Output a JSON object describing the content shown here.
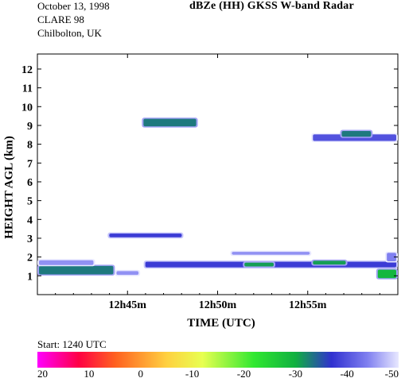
{
  "header": {
    "date": "October 13, 1998",
    "campaign": "CLARE 98",
    "site": "Chilbolton, UK",
    "title": "dBZe (HH)   GKSS  W-band Radar"
  },
  "start_label": "Start:  1240 UTC",
  "chart_data": {
    "type": "heatmap",
    "title": "dBZe (HH)   GKSS  W-band Radar",
    "xlabel": "TIME (UTC)",
    "ylabel": "HEIGHT AGL (km)",
    "x_ticks": [
      "12h45m",
      "12h50m",
      "12h55m"
    ],
    "x_tick_minutes": [
      45,
      50,
      55
    ],
    "xlim_minutes": [
      40,
      60
    ],
    "ylim_km": [
      0,
      12.8
    ],
    "y_ticks": [
      1,
      2,
      3,
      4,
      5,
      6,
      7,
      8,
      9,
      10,
      11,
      12
    ],
    "colorbar": {
      "ticks": [
        20,
        10,
        0,
        -10,
        -20,
        -30,
        -40,
        -50
      ],
      "range_dbz": [
        20,
        -50
      ],
      "stops": [
        {
          "dbz": 20,
          "color": "#ff00ff"
        },
        {
          "dbz": 12,
          "color": "#ff0044"
        },
        {
          "dbz": 5,
          "color": "#ff6020"
        },
        {
          "dbz": -5,
          "color": "#ffd040"
        },
        {
          "dbz": -12,
          "color": "#e8ff50"
        },
        {
          "dbz": -22,
          "color": "#30e830"
        },
        {
          "dbz": -30,
          "color": "#10b040"
        },
        {
          "dbz": -37,
          "color": "#3030d0"
        },
        {
          "dbz": -44,
          "color": "#8080f0"
        },
        {
          "dbz": -50,
          "color": "#e8e8ff"
        }
      ]
    },
    "echo_layers": [
      {
        "t_start_min": 40.0,
        "t_end_min": 44.3,
        "z_km": 1.3,
        "thick_km": 0.45,
        "dbz": -33
      },
      {
        "t_start_min": 44.3,
        "t_end_min": 45.7,
        "z_km": 1.15,
        "thick_km": 0.2,
        "dbz": -45
      },
      {
        "t_start_min": 40.0,
        "t_end_min": 43.2,
        "z_km": 1.7,
        "thick_km": 0.25,
        "dbz": -45
      },
      {
        "t_start_min": 45.9,
        "t_end_min": 60.0,
        "z_km": 1.6,
        "thick_km": 0.3,
        "dbz": -38
      },
      {
        "t_start_min": 51.4,
        "t_end_min": 53.2,
        "z_km": 1.6,
        "thick_km": 0.2,
        "dbz": -31
      },
      {
        "t_start_min": 55.2,
        "t_end_min": 57.2,
        "z_km": 1.7,
        "thick_km": 0.2,
        "dbz": -31
      },
      {
        "t_start_min": 58.8,
        "t_end_min": 60.0,
        "z_km": 1.1,
        "thick_km": 0.45,
        "dbz": -29
      },
      {
        "t_start_min": 59.3,
        "t_end_min": 60.0,
        "z_km": 2.0,
        "thick_km": 0.45,
        "dbz": -44
      },
      {
        "t_start_min": 43.9,
        "t_end_min": 48.1,
        "z_km": 3.15,
        "thick_km": 0.2,
        "dbz": -38
      },
      {
        "t_start_min": 45.8,
        "t_end_min": 48.9,
        "z_km": 9.15,
        "thick_km": 0.4,
        "dbz": -33
      },
      {
        "t_start_min": 55.2,
        "t_end_min": 60.0,
        "z_km": 8.35,
        "thick_km": 0.35,
        "dbz": -40
      },
      {
        "t_start_min": 56.8,
        "t_end_min": 58.6,
        "z_km": 8.55,
        "thick_km": 0.3,
        "dbz": -33
      },
      {
        "t_start_min": 50.7,
        "t_end_min": 55.2,
        "z_km": 2.2,
        "thick_km": 0.15,
        "dbz": -45
      }
    ]
  }
}
